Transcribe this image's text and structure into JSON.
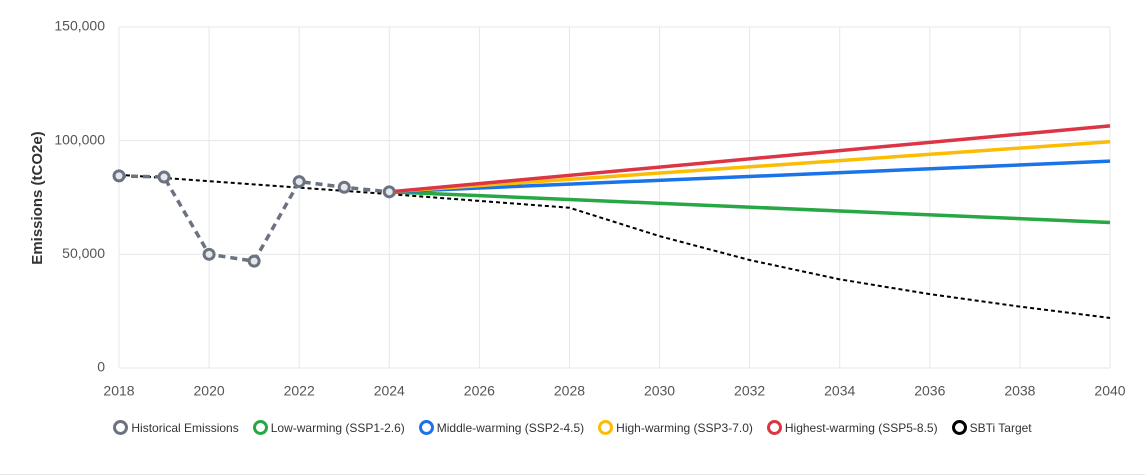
{
  "chart_data": {
    "type": "line",
    "y_label": "Emissions (tCO2e)",
    "xlim": [
      2018,
      2040
    ],
    "xticks": [
      2018,
      2020,
      2022,
      2024,
      2026,
      2028,
      2030,
      2032,
      2034,
      2036,
      2038,
      2040
    ],
    "ylim": [
      0,
      150000
    ],
    "yticks": [
      0,
      {
        "value": 50000,
        "label": "50,000"
      },
      {
        "value": 100000,
        "label": "100,000"
      },
      {
        "value": 150000,
        "label": "150,000"
      }
    ],
    "grid": true,
    "legend": "bottom",
    "series": [
      {
        "name": "Historical Emissions",
        "color": "#6b7280",
        "dashed": true,
        "markers": true,
        "x": [
          2018,
          2019,
          2020,
          2021,
          2022,
          2023,
          2024
        ],
        "values": [
          84500,
          84000,
          50000,
          47000,
          82000,
          79500,
          77500
        ]
      },
      {
        "name": "Low-warming (SSP1-2.6)",
        "color": "#28a745",
        "x": [
          2024,
          2040
        ],
        "values": [
          77500,
          64000
        ]
      },
      {
        "name": "Middle-warming (SSP2-4.5)",
        "color": "#1a73e8",
        "x": [
          2024,
          2040
        ],
        "values": [
          77500,
          91000
        ]
      },
      {
        "name": "High-warming (SSP3-7.0)",
        "color": "#fbbc04",
        "x": [
          2024,
          2040
        ],
        "values": [
          77500,
          99500
        ]
      },
      {
        "name": "Highest-warming (SSP5-8.5)",
        "color": "#dc3545",
        "x": [
          2024,
          2040
        ],
        "values": [
          77500,
          106500
        ]
      },
      {
        "name": "SBTi Target",
        "color": "#000000",
        "dashed": true,
        "x": [
          2018,
          2024,
          2028,
          2030,
          2032,
          2034,
          2036,
          2038,
          2040
        ],
        "values": [
          85000,
          76500,
          70500,
          58000,
          47500,
          39000,
          32500,
          27000,
          22000
        ]
      }
    ]
  }
}
